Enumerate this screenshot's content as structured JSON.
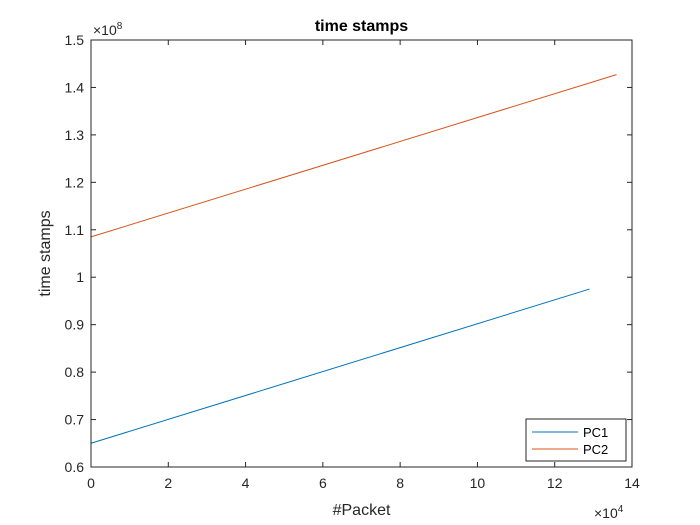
{
  "chart_data": {
    "type": "line",
    "title": "time stamps",
    "xlabel": "#Packet",
    "ylabel": "time stamps",
    "x_multiplier": {
      "base": "×10",
      "exponent": "4"
    },
    "y_multiplier": {
      "base": "×10",
      "exponent": "8"
    },
    "xlim": [
      0,
      14
    ],
    "ylim": [
      0.6,
      1.5
    ],
    "xticks": [
      0,
      2,
      4,
      6,
      8,
      10,
      12,
      14
    ],
    "yticks": [
      0.6,
      0.7,
      0.8,
      0.9,
      1,
      1.1,
      1.2,
      1.3,
      1.4,
      1.5
    ],
    "xtick_labels": [
      "0",
      "2",
      "4",
      "6",
      "8",
      "10",
      "12",
      "14"
    ],
    "ytick_labels": [
      "0.6",
      "0.7",
      "0.8",
      "0.9",
      "1",
      "1.1",
      "1.2",
      "1.3",
      "1.4",
      "1.5"
    ],
    "grid": false,
    "legend_position": "bottom-right",
    "series": [
      {
        "name": "PC1",
        "color": "#0072BD",
        "x": [
          0,
          12.9
        ],
        "y": [
          0.65,
          0.975
        ]
      },
      {
        "name": "PC2",
        "color": "#D95319",
        "x": [
          0,
          13.6
        ],
        "y": [
          1.085,
          1.427
        ]
      }
    ]
  }
}
